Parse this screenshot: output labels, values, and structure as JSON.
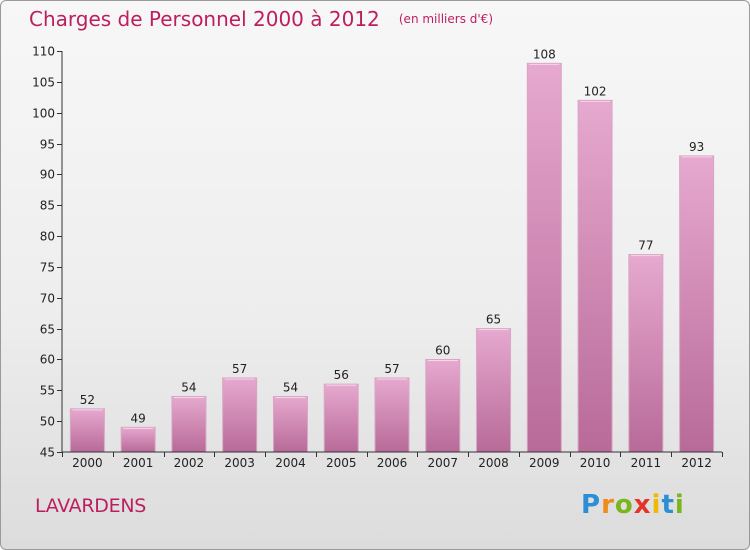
{
  "header": {
    "title": "Charges de Personnel 2000 à 2012",
    "unit": "(en milliers d'€)"
  },
  "footer": {
    "commune": "LAVARDENS",
    "logo_letters": [
      {
        "char": "P",
        "color": "#2b8fd6"
      },
      {
        "char": "r",
        "color": "#f08a1c"
      },
      {
        "char": "o",
        "color": "#7ab51d"
      },
      {
        "char": "x",
        "color": "#e5332a"
      },
      {
        "char": "i",
        "color": "#f2b800"
      },
      {
        "char": "t",
        "color": "#2b8fd6"
      },
      {
        "char": "i",
        "color": "#7ab51d"
      }
    ]
  },
  "colors": {
    "title": "#bd1e60",
    "bar_light": "#e6a9cf",
    "bar_dark": "#b86a98",
    "axis": "#333333"
  },
  "chart_data": {
    "type": "bar",
    "title": "Charges de Personnel 2000 à 2012",
    "subtitle": "(en milliers d'€)",
    "xlabel": "",
    "ylabel": "",
    "categories": [
      "2000",
      "2001",
      "2002",
      "2003",
      "2004",
      "2005",
      "2006",
      "2007",
      "2008",
      "2009",
      "2010",
      "2011",
      "2012"
    ],
    "values": [
      52,
      49,
      54,
      57,
      54,
      56,
      57,
      60,
      65,
      108,
      102,
      77,
      93
    ],
    "ylim": [
      45,
      110
    ],
    "yticks": [
      45,
      50,
      55,
      60,
      65,
      70,
      75,
      80,
      85,
      90,
      95,
      100,
      105,
      110
    ],
    "grid": false,
    "legend": "none"
  }
}
